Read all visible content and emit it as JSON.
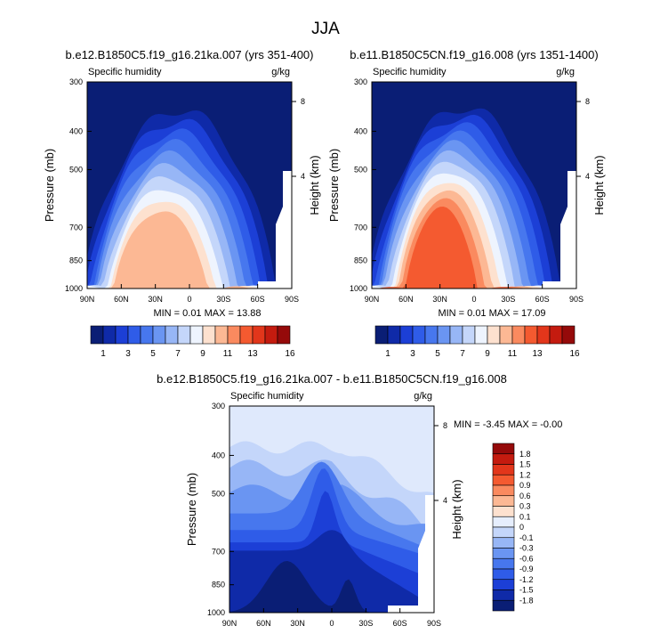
{
  "title": "JJA",
  "colors": {
    "abs_palette": [
      "#0a1e75",
      "#0f2aa8",
      "#1c3fd6",
      "#2f5ce8",
      "#4777ee",
      "#6a95f2",
      "#97b6f6",
      "#c4d6fa",
      "#eef4fe",
      "#fde1cf",
      "#fcb894",
      "#fa8a5f",
      "#f45a30",
      "#e2361b",
      "#c41b0f",
      "#950a0a"
    ],
    "diff_palette": [
      "#0a1e75",
      "#0f2aa8",
      "#1c3fd6",
      "#2f5ce8",
      "#4777ee",
      "#6a95f2",
      "#97b6f6",
      "#c4d6fa",
      "#e6eefd",
      "#fde1cf",
      "#fcb894",
      "#fa8a5f",
      "#f45a30",
      "#e2361b",
      "#c41b0f",
      "#950a0a"
    ]
  },
  "chart_data": [
    {
      "type": "contour",
      "id": "panel1",
      "title": "b.e12.B1850C5.f19_g16.21ka.007 (yrs 351-400)",
      "field_label": "Specific humidity",
      "units": "g/kg",
      "ylabel": "Pressure (mb)",
      "ylabel_right": "Height (km)",
      "x_ticks": [
        "90N",
        "60N",
        "30N",
        "0",
        "30S",
        "60S",
        "90S"
      ],
      "y_ticks": [
        "300",
        "400",
        "500",
        "700",
        "850",
        "1000"
      ],
      "y_right_ticks": [
        "8",
        "4"
      ],
      "min_label": "MIN =",
      "min_value": "0.01",
      "max_label": "MAX =",
      "max_value": "13.88",
      "colorbar_labels": [
        "1",
        "3",
        "5",
        "7",
        "9",
        "11",
        "13",
        "16"
      ]
    },
    {
      "type": "contour",
      "id": "panel2",
      "title": "b.e11.B1850C5CN.f19_g16.008 (yrs 1351-1400)",
      "field_label": "Specific humidity",
      "units": "g/kg",
      "ylabel": "Pressure (mb)",
      "ylabel_right": "Height (km)",
      "x_ticks": [
        "90N",
        "60N",
        "30N",
        "0",
        "30S",
        "60S",
        "90S"
      ],
      "y_ticks": [
        "300",
        "400",
        "500",
        "700",
        "850",
        "1000"
      ],
      "y_right_ticks": [
        "8",
        "4"
      ],
      "min_label": "MIN =",
      "min_value": "0.01",
      "max_label": "MAX =",
      "max_value": "17.09",
      "colorbar_labels": [
        "1",
        "3",
        "5",
        "7",
        "9",
        "11",
        "13",
        "16"
      ]
    },
    {
      "type": "contour",
      "id": "panel3",
      "title": "b.e12.B1850C5.f19_g16.21ka.007 - b.e11.B1850C5CN.f19_g16.008",
      "field_label": "Specific humidity",
      "units": "g/kg",
      "ylabel": "Pressure (mb)",
      "ylabel_right": "Height (km)",
      "x_ticks": [
        "90N",
        "60N",
        "30N",
        "0",
        "30S",
        "60S",
        "90S"
      ],
      "y_ticks": [
        "300",
        "400",
        "500",
        "700",
        "850",
        "1000"
      ],
      "y_right_ticks": [
        "8",
        "4"
      ],
      "min_label": "MIN =",
      "min_value": "-3.45",
      "max_label": "MAX =",
      "max_value": "-0.00",
      "colorbar_labels": [
        "1.8",
        "1.5",
        "1.2",
        "0.9",
        "0.6",
        "0.3",
        "0.1",
        "0",
        "-0.1",
        "-0.3",
        "-0.6",
        "-0.9",
        "-1.2",
        "-1.5",
        "-1.8"
      ]
    }
  ]
}
